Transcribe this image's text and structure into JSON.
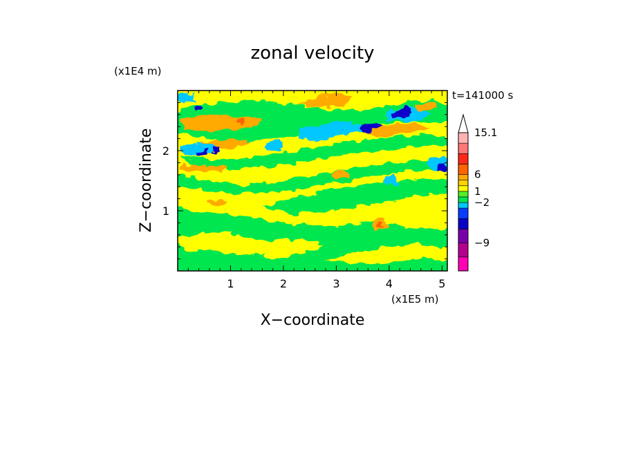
{
  "chart_data": {
    "type": "heatmap",
    "title": "zonal velocity",
    "xlabel": "X−coordinate",
    "ylabel": "Z−coordinate",
    "x_scale_label": "(x1E5 m)",
    "y_scale_label": "(x1E4 m)",
    "time_label": "t=141000 s",
    "x_ticks": [
      "1",
      "2",
      "3",
      "4",
      "5"
    ],
    "y_ticks": [
      "1",
      "2"
    ],
    "xlim": [
      0,
      5.1
    ],
    "ylim": [
      0,
      3.0
    ],
    "colorbar": {
      "labels": [
        "15.1",
        "6",
        "1",
        "−2",
        "−9"
      ],
      "label_values": [
        15.1,
        6,
        1,
        -2,
        -9
      ],
      "levels": [
        {
          "color": "#ff00b4"
        },
        {
          "color": "#b4008c"
        },
        {
          "color": "#7800aa"
        },
        {
          "color": "#0a00c8"
        },
        {
          "color": "#0a3cff"
        },
        {
          "color": "#00c8ff"
        },
        {
          "color": "#00e650"
        },
        {
          "color": "#50f028"
        },
        {
          "color": "#ffff00"
        },
        {
          "color": "#ffd200"
        },
        {
          "color": "#ffaa00"
        },
        {
          "color": "#ff6400"
        },
        {
          "color": "#ff2814"
        },
        {
          "color": "#ff7878"
        },
        {
          "color": "#ffb4b4"
        }
      ],
      "extend_top": true
    },
    "regions": [
      {
        "band": "upper wave layer, x 0-5.1, z 1.9-3.0",
        "dominant": [
          "#ffff00",
          "#ffaa00",
          "#00e650",
          "#00c8ff"
        ],
        "extremes": "dark blue patches near x 3.6-4.4, z 2.4-2.6"
      },
      {
        "band": "middle layer, x 0-5.1, z 1.0-1.9",
        "dominant": [
          "#ffff00",
          "#00e650"
        ]
      },
      {
        "band": "lower layer, x 0-5.1, z 0-1.0",
        "dominant": [
          "#00e650",
          "#ffff00"
        ]
      }
    ]
  }
}
